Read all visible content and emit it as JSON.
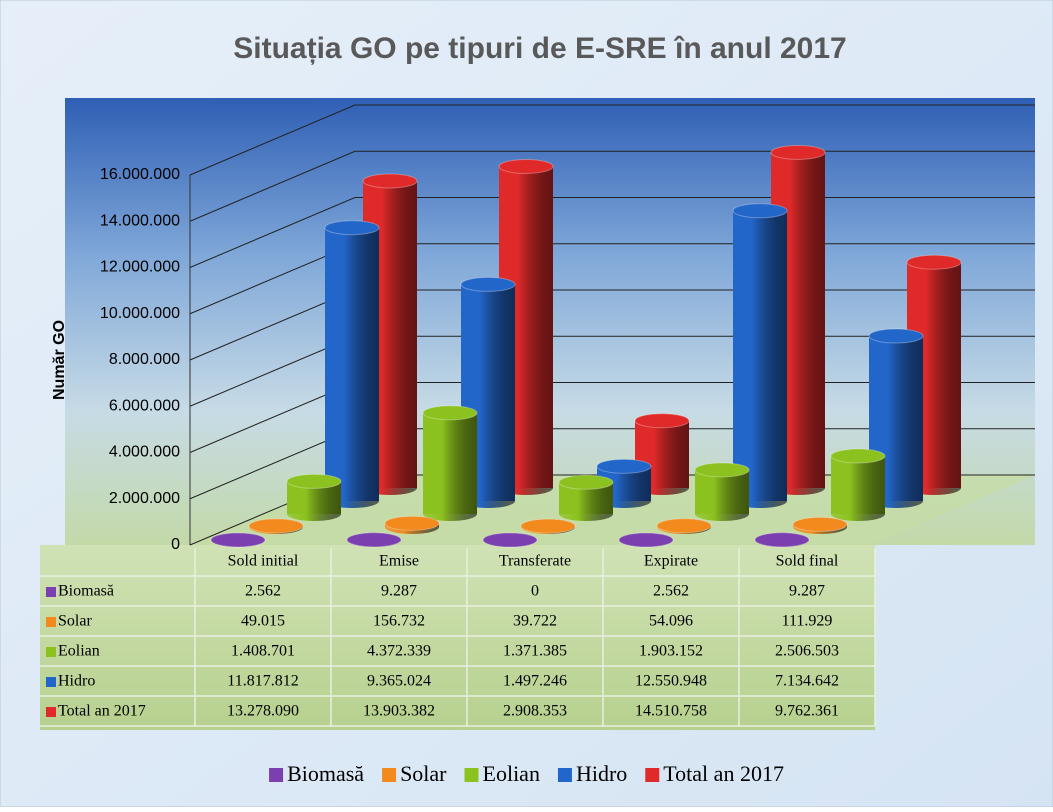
{
  "chart_data": {
    "type": "bar",
    "title": "Situația GO pe tipuri de E-SRE în anul 2017",
    "y_label": "Număr GO",
    "categories": [
      "Sold initial",
      "Emise",
      "Transferate",
      "Expirate",
      "Sold final"
    ],
    "series": [
      {
        "name": "Biomasă",
        "color": "#7b3fb0",
        "values": [
          2562,
          9287,
          0,
          2562,
          9287
        ],
        "value_labels": [
          "2.562",
          "9.287",
          "0",
          "2.562",
          "9.287"
        ]
      },
      {
        "name": "Solar",
        "color": "#f28a1e",
        "values": [
          49015,
          156732,
          39722,
          54096,
          111929
        ],
        "value_labels": [
          "49.015",
          "156.732",
          "39.722",
          "54.096",
          "111.929"
        ]
      },
      {
        "name": "Eolian",
        "color": "#8cc21f",
        "values": [
          1408701,
          4372339,
          1371385,
          1903152,
          2506503
        ],
        "value_labels": [
          "1.408.701",
          "4.372.339",
          "1.371.385",
          "1.903.152",
          "2.506.503"
        ]
      },
      {
        "name": "Hidro",
        "color": "#2366c9",
        "values": [
          11817812,
          9365024,
          1497246,
          12550948,
          7134642
        ],
        "value_labels": [
          "11.817.812",
          "9.365.024",
          "1.497.246",
          "12.550.948",
          "7.134.642"
        ]
      },
      {
        "name": "Total an 2017",
        "color": "#e02a2a",
        "values": [
          13278090,
          13903382,
          2908353,
          14510758,
          9762361
        ],
        "value_labels": [
          "13.278.090",
          "13.903.382",
          "2.908.353",
          "14.510.758",
          "9.762.361"
        ]
      }
    ],
    "ylim": [
      0,
      16000000
    ],
    "yticks": [
      0,
      {
        "value": 2000000,
        "label": "2.000.000"
      },
      {
        "value": 4000000,
        "label": "4.000.000"
      },
      {
        "value": 6000000,
        "label": "6.000.000"
      },
      {
        "value": 8000000,
        "label": "8.000.000"
      },
      {
        "value": 10000000,
        "label": "10.000.000"
      },
      {
        "value": 12000000,
        "label": "12.000.000"
      },
      {
        "value": 14000000,
        "label": "14.000.000"
      },
      {
        "value": 16000000,
        "label": "16.000.000"
      }
    ],
    "grid": true,
    "legend": "bottom"
  }
}
